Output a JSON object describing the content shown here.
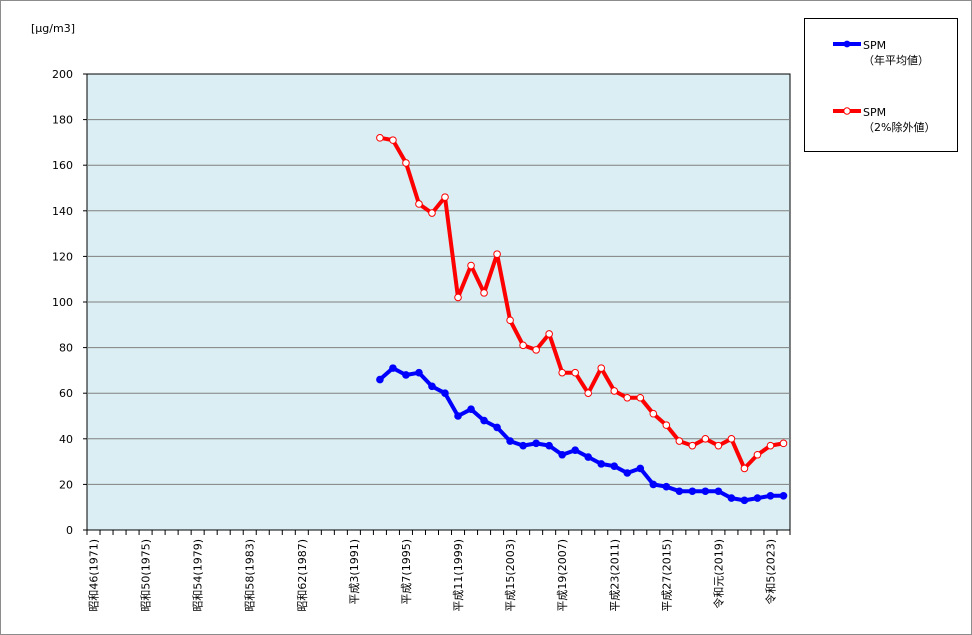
{
  "chart_data": {
    "type": "line",
    "unit_label": "[μg/m3]",
    "ylim": [
      0,
      200
    ],
    "y_ticks": [
      0,
      20,
      40,
      60,
      80,
      100,
      120,
      140,
      160,
      180,
      200
    ],
    "grid": true,
    "legend_position": "top-right",
    "plot_background": "#daeef3",
    "x_years": [
      1971,
      1972,
      1973,
      1974,
      1975,
      1976,
      1977,
      1978,
      1979,
      1980,
      1981,
      1982,
      1983,
      1984,
      1985,
      1986,
      1987,
      1988,
      1989,
      1990,
      1991,
      1992,
      1993,
      1994,
      1995,
      1996,
      1997,
      1998,
      1999,
      2000,
      2001,
      2002,
      2003,
      2004,
      2005,
      2006,
      2007,
      2008,
      2009,
      2010,
      2011,
      2012,
      2013,
      2014,
      2015,
      2016,
      2017,
      2018,
      2019,
      2020,
      2021,
      2022,
      2023,
      2024
    ],
    "x_tick_labels": [
      {
        "year": 1971,
        "label": "昭和46(1971)"
      },
      {
        "year": 1975,
        "label": "昭和50(1975)"
      },
      {
        "year": 1979,
        "label": "昭和54(1979)"
      },
      {
        "year": 1983,
        "label": "昭和58(1983)"
      },
      {
        "year": 1987,
        "label": "昭和62(1987)"
      },
      {
        "year": 1991,
        "label": "平成3(1991)"
      },
      {
        "year": 1995,
        "label": "平成7(1995)"
      },
      {
        "year": 1999,
        "label": "平成11(1999)"
      },
      {
        "year": 2003,
        "label": "平成15(2003)"
      },
      {
        "year": 2007,
        "label": "平成19(2007)"
      },
      {
        "year": 2011,
        "label": "平成23(2011)"
      },
      {
        "year": 2015,
        "label": "平成27(2015)"
      },
      {
        "year": 2019,
        "label": "令和元(2019)"
      },
      {
        "year": 2023,
        "label": "令和5(2023)"
      }
    ],
    "series": [
      {
        "name": "SPM",
        "name_line2": "（年平均値）",
        "color": "#0000ff",
        "marker": "filled-circle",
        "x": [
          1993,
          1994,
          1995,
          1996,
          1997,
          1998,
          1999,
          2000,
          2001,
          2002,
          2003,
          2004,
          2005,
          2006,
          2007,
          2008,
          2009,
          2010,
          2011,
          2012,
          2013,
          2014,
          2015,
          2016,
          2017,
          2018,
          2019,
          2020,
          2021,
          2022,
          2023,
          2024
        ],
        "values": [
          66,
          71,
          68,
          69,
          63,
          60,
          50,
          53,
          48,
          45,
          39,
          37,
          38,
          37,
          33,
          35,
          32,
          29,
          28,
          25,
          27,
          20,
          19,
          17,
          17,
          17,
          17,
          14,
          13,
          14,
          15,
          15
        ]
      },
      {
        "name": "SPM",
        "name_line2": "（2%除外値）",
        "color": "#ff0000",
        "marker": "open-circle",
        "x": [
          1993,
          1994,
          1995,
          1996,
          1997,
          1998,
          1999,
          2000,
          2001,
          2002,
          2003,
          2004,
          2005,
          2006,
          2007,
          2008,
          2009,
          2010,
          2011,
          2012,
          2013,
          2014,
          2015,
          2016,
          2017,
          2018,
          2019,
          2020,
          2021,
          2022,
          2023,
          2024
        ],
        "values": [
          172,
          171,
          161,
          143,
          139,
          146,
          102,
          116,
          104,
          121,
          92,
          81,
          79,
          86,
          69,
          69,
          60,
          71,
          61,
          58,
          58,
          51,
          46,
          39,
          37,
          40,
          37,
          40,
          27,
          33,
          37,
          38
        ]
      }
    ]
  }
}
